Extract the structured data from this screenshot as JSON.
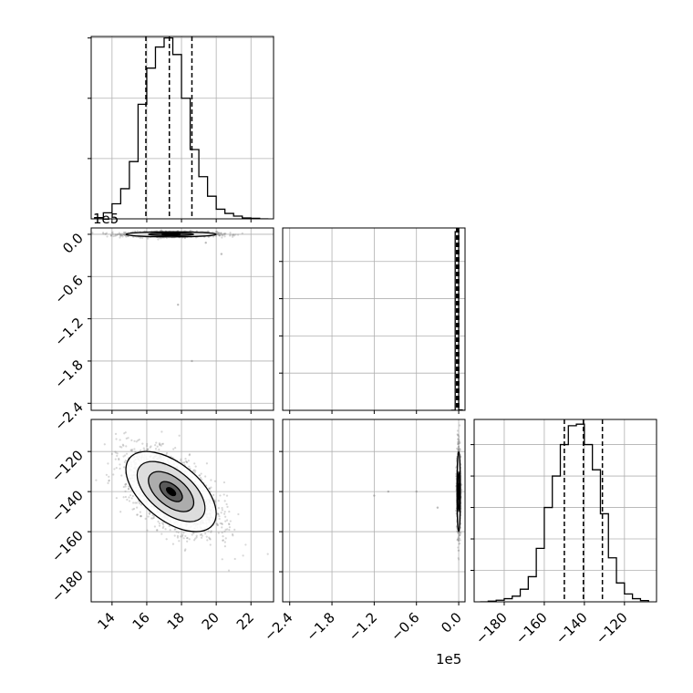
{
  "figure": {
    "type": "corner-plot",
    "background": "#ffffff",
    "line_color": "#000000",
    "grid_color": "#b0b0b0",
    "scatter_color": "#8c8c8c"
  },
  "chart_data": [
    {
      "panel": "p0_0",
      "type": "histogram",
      "xlim": [
        12.8,
        23.3
      ],
      "ylim": [
        0,
        605
      ],
      "grid": true,
      "bin_edges": [
        13.0,
        13.5,
        14.0,
        14.5,
        15.0,
        15.5,
        16.0,
        16.5,
        17.0,
        17.5,
        18.0,
        18.5,
        19.0,
        19.5,
        20.0,
        20.5,
        21.0,
        21.5,
        22.0,
        22.5,
        23.0
      ],
      "counts": [
        4,
        20,
        50,
        100,
        190,
        380,
        500,
        570,
        600,
        545,
        400,
        230,
        140,
        75,
        32,
        18,
        9,
        3,
        2,
        0
      ],
      "quantiles": [
        15.95,
        17.3,
        18.6
      ],
      "tick_values": [
        14,
        16,
        18,
        20,
        22
      ],
      "y_tick_values": [
        200,
        400,
        600
      ]
    },
    {
      "panel": "p1_0",
      "type": "scatter-contour",
      "xlim": [
        12.8,
        23.3
      ],
      "ylim": [
        -250000,
        9000
      ],
      "grid": true,
      "center": [
        17.4,
        0
      ],
      "axis_offset_label": "1e5",
      "y_ticks": [
        "0.0",
        "−0.6",
        "−1.2",
        "−1.8",
        "−2.4"
      ],
      "y_tick_values": [
        0,
        -60000,
        -120000,
        -180000,
        -240000
      ],
      "outliers": [
        [
          18.2,
          -5000
        ],
        [
          19.4,
          -12000
        ],
        [
          20.3,
          -28000
        ],
        [
          17.8,
          -100000
        ],
        [
          18.6,
          -180000
        ]
      ]
    },
    {
      "panel": "p1_1",
      "type": "histogram",
      "xlim": [
        -250000,
        9000
      ],
      "ylim": [
        0,
        2450
      ],
      "grid": true,
      "bin_edges": [
        -10000,
        -5000,
        0,
        5000,
        10000
      ],
      "counts": [
        1,
        2400,
        6,
        0
      ],
      "quantiles": [
        -3000,
        -1500,
        0
      ],
      "tick_values": [
        -240000,
        -180000,
        -120000,
        -60000,
        0
      ],
      "y_tick_values": [
        500,
        1000,
        1500,
        2000
      ]
    },
    {
      "panel": "p2_0",
      "type": "scatter-contour",
      "xlim": [
        12.8,
        23.3
      ],
      "ylim": [
        -195,
        -104
      ],
      "grid": true,
      "center": [
        17.4,
        -140
      ],
      "correlation": -0.55,
      "x_ticks": [
        "14",
        "16",
        "18",
        "20",
        "22"
      ],
      "x_tick_values": [
        14,
        16,
        18,
        20,
        22
      ],
      "y_ticks": [
        "−120",
        "−140",
        "−160",
        "−180"
      ],
      "y_tick_values": [
        -120,
        -140,
        -160,
        -180
      ]
    },
    {
      "panel": "p2_1",
      "type": "scatter-contour",
      "xlim": [
        -250000,
        9000
      ],
      "ylim": [
        -195,
        -104
      ],
      "grid": true,
      "center": [
        0,
        -140
      ],
      "axis_offset_label": "1e5",
      "x_ticks": [
        "−2.4",
        "−1.8",
        "−1.2",
        "−0.6",
        "0.0"
      ],
      "x_tick_values": [
        -240000,
        -180000,
        -120000,
        -60000,
        0
      ],
      "outliers": [
        [
          -120000,
          -142
        ],
        [
          -60000,
          -140
        ],
        [
          -100000,
          -140
        ],
        [
          -30000,
          -148
        ]
      ]
    },
    {
      "panel": "p2_2",
      "type": "histogram",
      "xlim": [
        -195,
        -104
      ],
      "ylim": [
        0,
        580
      ],
      "grid": true,
      "bin_edges": [
        -192,
        -188,
        -184,
        -180,
        -176,
        -172,
        -168,
        -164,
        -160,
        -156,
        -152,
        -148,
        -144,
        -140,
        -136,
        -132,
        -128,
        -124,
        -120,
        -116,
        -112,
        -108
      ],
      "counts": [
        0,
        2,
        5,
        10,
        18,
        40,
        80,
        170,
        300,
        400,
        500,
        560,
        565,
        500,
        420,
        280,
        140,
        60,
        25,
        10,
        4
      ],
      "quantiles": [
        -150,
        -140.5,
        -131
      ],
      "x_ticks": [
        "−180",
        "−160",
        "−140",
        "−120"
      ],
      "tick_values": [
        -180,
        -160,
        -140,
        -120
      ],
      "y_tick_values": [
        100,
        200,
        300,
        400,
        500
      ]
    }
  ]
}
